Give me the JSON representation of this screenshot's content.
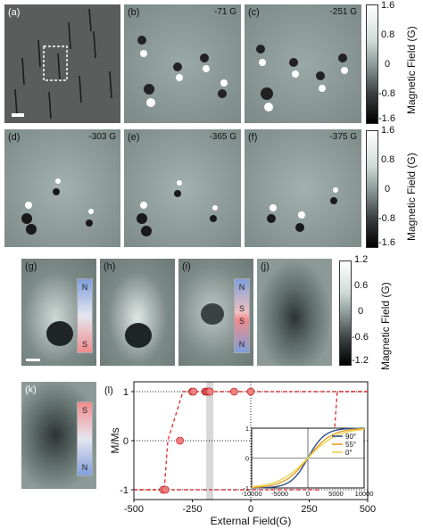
{
  "panels": {
    "a": {
      "label": "(a)"
    },
    "b": {
      "label": "(b)",
      "field": "-71 G"
    },
    "c": {
      "label": "(c)",
      "field": "-251 G"
    },
    "d": {
      "label": "(d)",
      "field": "-303 G"
    },
    "e": {
      "label": "(e)",
      "field": "-365 G"
    },
    "f": {
      "label": "(f)",
      "field": "-375 G"
    },
    "g": {
      "label": "(g)",
      "magnet_top": "N",
      "magnet_bottom": "S"
    },
    "h": {
      "label": "(h)"
    },
    "i": {
      "label": "(i)",
      "magnet_labels": [
        "N",
        "S",
        "S",
        "N"
      ]
    },
    "j": {
      "label": "(j)"
    },
    "k": {
      "label": "(k)",
      "magnet_top": "S",
      "magnet_bottom": "N"
    },
    "l": {
      "label": "(l)"
    }
  },
  "colorbar_top": {
    "ticks": [
      "1.6",
      "0.8",
      "0",
      "-0.8",
      "-1.6"
    ],
    "title": "Magnetic Field (G)"
  },
  "colorbar_mid": {
    "ticks": [
      "1.6",
      "0.8",
      "0",
      "-0.8",
      "-1.6"
    ],
    "title": "Magnetic Field (G)"
  },
  "colorbar_low": {
    "ticks": [
      "1.2",
      "0.6",
      "0",
      "-0.6",
      "-1.2"
    ],
    "title": "Magnetic Field (G)"
  },
  "chart_data": [
    {
      "type": "line",
      "xlabel": "External Field(G)",
      "ylabel": "M/Ms",
      "xlim": [
        -500,
        500
      ],
      "ylim": [
        -1.2,
        1.2
      ],
      "xticks": [
        "-500",
        "-250",
        "0",
        "250",
        "500"
      ],
      "yticks": [
        "1",
        "0",
        "-1"
      ],
      "series": [
        {
          "values_x": [
            500,
            -290,
            -355,
            -370,
            -500
          ],
          "values_y": [
            1,
            1,
            0,
            -1,
            -1
          ]
        },
        {
          "values_x": [
            -500,
            290,
            355,
            370,
            500
          ],
          "values_y": [
            -1,
            -1,
            0,
            1,
            1
          ]
        }
      ],
      "points": {
        "x": [
          -375,
          -365,
          -303,
          -251,
          -245,
          -195,
          -190,
          -185,
          -180,
          -175,
          -71,
          0
        ],
        "y": [
          -1,
          -1,
          0,
          1,
          1,
          1,
          1,
          1,
          1,
          1,
          1,
          1
        ]
      },
      "shaded_band": [
        -190,
        -160
      ]
    },
    {
      "type": "line",
      "xlim": [
        -10000,
        10000
      ],
      "ylim": [
        -1,
        1
      ],
      "xticks": [
        "-10000",
        "-5000",
        "0",
        "5000",
        "10000"
      ],
      "yticks": [
        "1",
        "0",
        "-1"
      ],
      "series": [
        {
          "name": "90°",
          "color": "#2b4f8a"
        },
        {
          "name": "55°",
          "color": "#e39d2c"
        },
        {
          "name": "0°",
          "color": "#e8d44d"
        }
      ]
    }
  ]
}
